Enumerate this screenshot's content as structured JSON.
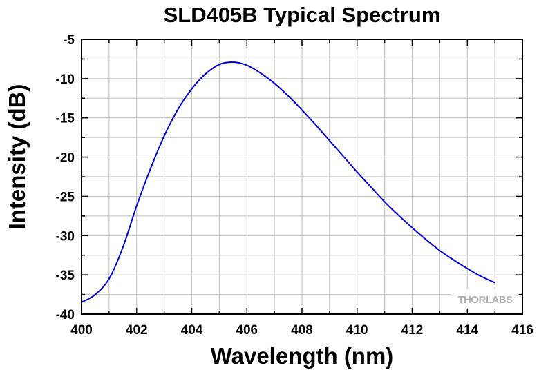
{
  "chart_data": {
    "type": "line",
    "title": "SLD405B Typical Spectrum",
    "xlabel": "Wavelength (nm)",
    "ylabel": "Intensity (dB)",
    "xlim": [
      400,
      416
    ],
    "ylim": [
      -40,
      -5
    ],
    "x_ticks": [
      "400",
      "402",
      "404",
      "406",
      "408",
      "410",
      "412",
      "414",
      "416"
    ],
    "y_ticks": [
      "-5",
      "-10",
      "-15",
      "-20",
      "-25",
      "-30",
      "-35",
      "-40"
    ],
    "grid": true,
    "line_color": "#0000dd",
    "series": [
      {
        "x": [
          400,
          400.5,
          401,
          401.5,
          402,
          402.5,
          403,
          403.5,
          404,
          404.5,
          405,
          405.5,
          406,
          406.5,
          407,
          407.5,
          408,
          408.5,
          409,
          409.5,
          410,
          410.5,
          411,
          411.5,
          412,
          412.5,
          413,
          413.5,
          414,
          414.5,
          415
        ],
        "y": [
          -38.5,
          -37.5,
          -35.5,
          -31.5,
          -26.2,
          -21.5,
          -17.3,
          -13.9,
          -11.3,
          -9.4,
          -8.2,
          -7.9,
          -8.3,
          -9.3,
          -10.6,
          -12.2,
          -14.0,
          -15.9,
          -17.9,
          -19.9,
          -21.9,
          -23.8,
          -25.7,
          -27.4,
          -29.0,
          -30.5,
          -31.9,
          -33.1,
          -34.2,
          -35.2,
          -36.0
        ]
      }
    ]
  },
  "logo": {
    "text": "THORLABS"
  }
}
